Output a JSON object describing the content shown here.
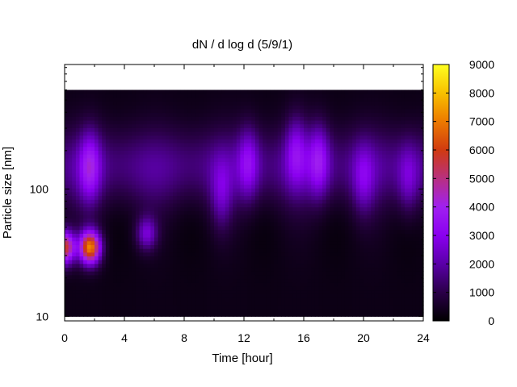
{
  "chart_data": {
    "type": "heatmap",
    "title": "dN / d log d (5/9/1)",
    "xlabel": "Time [hour]",
    "ylabel": "Particle size [nm]",
    "xlim": [
      0,
      24
    ],
    "x_ticks": [
      "0",
      "4",
      "8",
      "12",
      "16",
      "20",
      "24"
    ],
    "x_tick_values": [
      0,
      4,
      8,
      12,
      16,
      20,
      24
    ],
    "ylim": [
      9.2,
      950
    ],
    "y_scale": "log",
    "y_ticks": [
      "10",
      "100"
    ],
    "y_tick_values": [
      10,
      100
    ],
    "colorbar": {
      "min": 0,
      "max": 9000,
      "ticks": [
        "0",
        "1000",
        "2000",
        "3000",
        "4000",
        "5000",
        "6000",
        "7000",
        "8000",
        "9000"
      ],
      "tick_values": [
        0,
        1000,
        2000,
        3000,
        4000,
        5000,
        6000,
        7000,
        8000,
        9000
      ],
      "colormap": [
        "#000000",
        "#2a0048",
        "#5a00a8",
        "#8a00f0",
        "#a020f0",
        "#b83080",
        "#d03a10",
        "#ec7a00",
        "#f8c000",
        "#ffff20"
      ]
    },
    "data_size_range_nm": [
      10,
      600
    ],
    "features": [
      {
        "t": 0.0,
        "d": 35,
        "peak": 5500
      },
      {
        "t": 1.7,
        "d": 35,
        "peak": 6800
      },
      {
        "t": 1.7,
        "d": 150,
        "peak": 2400
      },
      {
        "t": 5.5,
        "d": 45,
        "peak": 2200
      },
      {
        "t": 10.5,
        "d": 90,
        "peak": 1400
      },
      {
        "t": 12.3,
        "d": 160,
        "peak": 1900
      },
      {
        "t": 15.5,
        "d": 200,
        "peak": 1900
      },
      {
        "t": 17.0,
        "d": 170,
        "peak": 2300
      },
      {
        "t": 20.0,
        "d": 120,
        "peak": 1400
      },
      {
        "t": 23.0,
        "d": 120,
        "peak": 1400
      }
    ],
    "grid": false,
    "legend": "colorbar-right"
  }
}
